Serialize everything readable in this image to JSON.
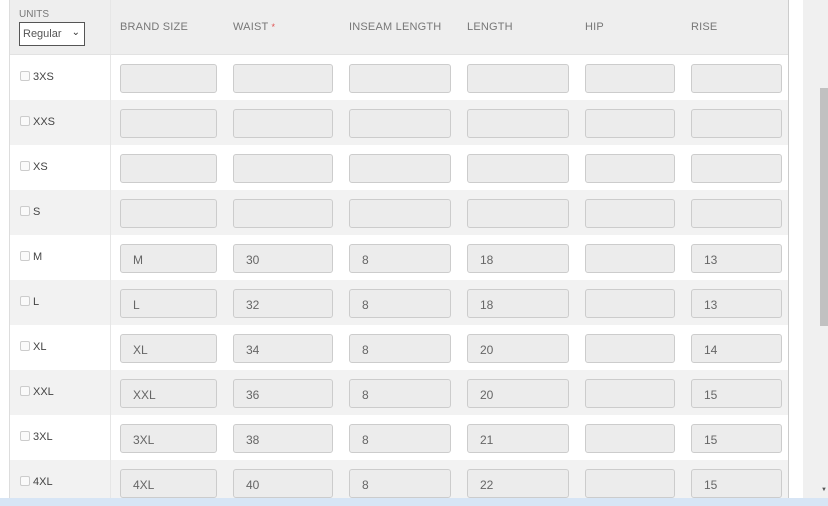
{
  "units": {
    "label": "UNITS",
    "selected": "Regular"
  },
  "headers": [
    "BRAND SIZE",
    "WAIST",
    "INSEAM LENGTH",
    "LENGTH",
    "HIP",
    "RISE"
  ],
  "required_marker": "*",
  "colors": {
    "required": "#e05050",
    "scrollbar_thumb": "#c1c1c1"
  },
  "rows": [
    {
      "size": "3XS",
      "values": [
        "",
        "",
        "",
        "",
        "",
        ""
      ]
    },
    {
      "size": "XXS",
      "values": [
        "",
        "",
        "",
        "",
        "",
        ""
      ]
    },
    {
      "size": "XS",
      "values": [
        "",
        "",
        "",
        "",
        "",
        ""
      ]
    },
    {
      "size": "S",
      "values": [
        "",
        "",
        "",
        "",
        "",
        ""
      ]
    },
    {
      "size": "M",
      "values": [
        "M",
        "30",
        "8",
        "18",
        "",
        "13"
      ]
    },
    {
      "size": "L",
      "values": [
        "L",
        "32",
        "8",
        "18",
        "",
        "13"
      ]
    },
    {
      "size": "XL",
      "values": [
        "XL",
        "34",
        "8",
        "20",
        "",
        "14"
      ]
    },
    {
      "size": "XXL",
      "values": [
        "XXL",
        "36",
        "8",
        "20",
        "",
        "15"
      ]
    },
    {
      "size": "3XL",
      "values": [
        "3XL",
        "38",
        "8",
        "21",
        "",
        "15"
      ]
    },
    {
      "size": "4XL",
      "values": [
        "4XL",
        "40",
        "8",
        "22",
        "",
        "15"
      ]
    }
  ]
}
